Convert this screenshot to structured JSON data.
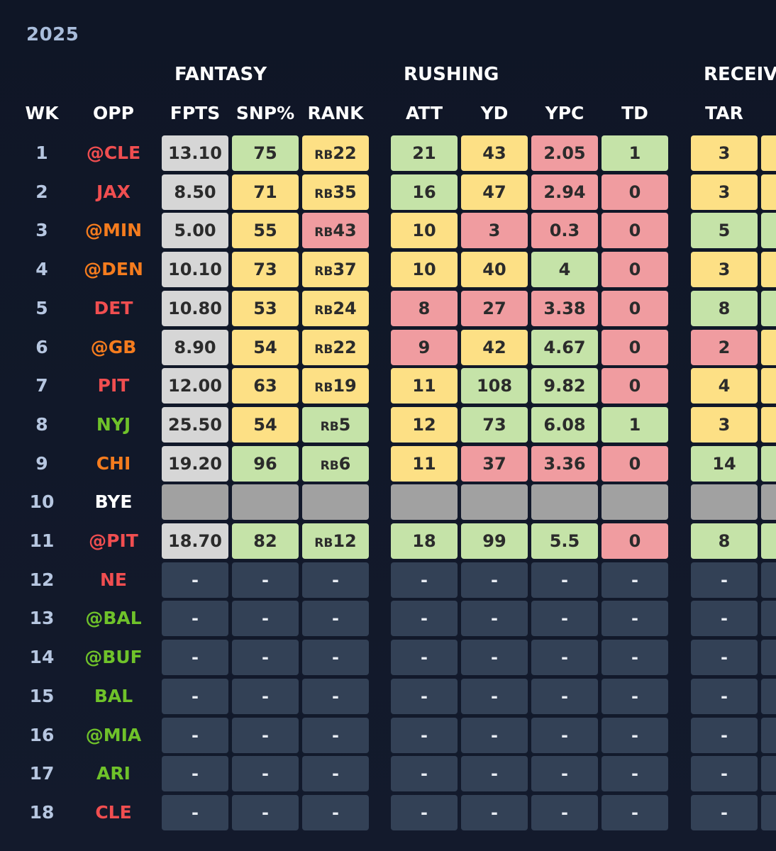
{
  "season": "2025",
  "colors": {
    "green": "#c5e3a8",
    "yellow": "#fde085",
    "red": "#f09ca0",
    "grey": "#d6d6d6",
    "bye": "#a1a1a1",
    "empty": "#334156",
    "team_red": "#f04e50",
    "team_orange": "#f57c1e",
    "team_green": "#6fc22a",
    "team_white": "#ffffff"
  },
  "groups": [
    {
      "label": "FANTASY"
    },
    {
      "label": "RUSHING"
    },
    {
      "label": "RECEIV"
    }
  ],
  "columns": [
    {
      "label": "WK"
    },
    {
      "label": "OPP"
    },
    {
      "label": "FPTS"
    },
    {
      "label": "SNP%"
    },
    {
      "label": "RANK"
    },
    {
      "label": "ATT"
    },
    {
      "label": "YD"
    },
    {
      "label": "YPC"
    },
    {
      "label": "TD"
    },
    {
      "label": "TAR"
    }
  ],
  "rows": [
    {
      "wk": "1",
      "opp": "@CLE",
      "opp_color": "red",
      "cells": [
        {
          "v": "13.10",
          "c": "grey"
        },
        {
          "v": "75",
          "c": "green"
        },
        {
          "pre": "RB",
          "v": "22",
          "c": "yellow"
        },
        {
          "v": "21",
          "c": "green"
        },
        {
          "v": "43",
          "c": "yellow"
        },
        {
          "v": "2.05",
          "c": "red"
        },
        {
          "v": "1",
          "c": "green"
        },
        {
          "v": "3",
          "c": "yellow"
        },
        {
          "v": "",
          "c": "yellow"
        }
      ]
    },
    {
      "wk": "2",
      "opp": "JAX",
      "opp_color": "red",
      "cells": [
        {
          "v": "8.50",
          "c": "grey"
        },
        {
          "v": "71",
          "c": "yellow"
        },
        {
          "pre": "RB",
          "v": "35",
          "c": "yellow"
        },
        {
          "v": "16",
          "c": "green"
        },
        {
          "v": "47",
          "c": "yellow"
        },
        {
          "v": "2.94",
          "c": "red"
        },
        {
          "v": "0",
          "c": "red"
        },
        {
          "v": "3",
          "c": "yellow"
        },
        {
          "v": "",
          "c": "yellow"
        }
      ]
    },
    {
      "wk": "3",
      "opp": "@MIN",
      "opp_color": "orange",
      "cells": [
        {
          "v": "5.00",
          "c": "grey"
        },
        {
          "v": "55",
          "c": "yellow"
        },
        {
          "pre": "RB",
          "v": "43",
          "c": "red"
        },
        {
          "v": "10",
          "c": "yellow"
        },
        {
          "v": "3",
          "c": "red"
        },
        {
          "v": "0.3",
          "c": "red"
        },
        {
          "v": "0",
          "c": "red"
        },
        {
          "v": "5",
          "c": "green"
        },
        {
          "v": "",
          "c": "green"
        }
      ]
    },
    {
      "wk": "4",
      "opp": "@DEN",
      "opp_color": "orange",
      "cells": [
        {
          "v": "10.10",
          "c": "grey"
        },
        {
          "v": "73",
          "c": "yellow"
        },
        {
          "pre": "RB",
          "v": "37",
          "c": "yellow"
        },
        {
          "v": "10",
          "c": "yellow"
        },
        {
          "v": "40",
          "c": "yellow"
        },
        {
          "v": "4",
          "c": "green"
        },
        {
          "v": "0",
          "c": "red"
        },
        {
          "v": "3",
          "c": "yellow"
        },
        {
          "v": "",
          "c": "yellow"
        }
      ]
    },
    {
      "wk": "5",
      "opp": "DET",
      "opp_color": "red",
      "cells": [
        {
          "v": "10.80",
          "c": "grey"
        },
        {
          "v": "53",
          "c": "yellow"
        },
        {
          "pre": "RB",
          "v": "24",
          "c": "yellow"
        },
        {
          "v": "8",
          "c": "red"
        },
        {
          "v": "27",
          "c": "red"
        },
        {
          "v": "3.38",
          "c": "red"
        },
        {
          "v": "0",
          "c": "red"
        },
        {
          "v": "8",
          "c": "green"
        },
        {
          "v": "",
          "c": "green"
        }
      ]
    },
    {
      "wk": "6",
      "opp": "@GB",
      "opp_color": "orange",
      "cells": [
        {
          "v": "8.90",
          "c": "grey"
        },
        {
          "v": "54",
          "c": "yellow"
        },
        {
          "pre": "RB",
          "v": "22",
          "c": "yellow"
        },
        {
          "v": "9",
          "c": "red"
        },
        {
          "v": "42",
          "c": "yellow"
        },
        {
          "v": "4.67",
          "c": "green"
        },
        {
          "v": "0",
          "c": "red"
        },
        {
          "v": "2",
          "c": "red"
        },
        {
          "v": "",
          "c": "yellow"
        }
      ]
    },
    {
      "wk": "7",
      "opp": "PIT",
      "opp_color": "red",
      "cells": [
        {
          "v": "12.00",
          "c": "grey"
        },
        {
          "v": "63",
          "c": "yellow"
        },
        {
          "pre": "RB",
          "v": "19",
          "c": "yellow"
        },
        {
          "v": "11",
          "c": "yellow"
        },
        {
          "v": "108",
          "c": "green"
        },
        {
          "v": "9.82",
          "c": "green"
        },
        {
          "v": "0",
          "c": "red"
        },
        {
          "v": "4",
          "c": "yellow"
        },
        {
          "v": "",
          "c": "yellow"
        }
      ]
    },
    {
      "wk": "8",
      "opp": "NYJ",
      "opp_color": "green",
      "cells": [
        {
          "v": "25.50",
          "c": "grey"
        },
        {
          "v": "54",
          "c": "yellow"
        },
        {
          "pre": "RB",
          "v": "5",
          "c": "green"
        },
        {
          "v": "12",
          "c": "yellow"
        },
        {
          "v": "73",
          "c": "green"
        },
        {
          "v": "6.08",
          "c": "green"
        },
        {
          "v": "1",
          "c": "green"
        },
        {
          "v": "3",
          "c": "yellow"
        },
        {
          "v": "",
          "c": "yellow"
        }
      ]
    },
    {
      "wk": "9",
      "opp": "CHI",
      "opp_color": "orange",
      "cells": [
        {
          "v": "19.20",
          "c": "grey"
        },
        {
          "v": "96",
          "c": "green"
        },
        {
          "pre": "RB",
          "v": "6",
          "c": "green"
        },
        {
          "v": "11",
          "c": "yellow"
        },
        {
          "v": "37",
          "c": "red"
        },
        {
          "v": "3.36",
          "c": "red"
        },
        {
          "v": "0",
          "c": "red"
        },
        {
          "v": "14",
          "c": "green"
        },
        {
          "v": "",
          "c": "green"
        }
      ]
    },
    {
      "wk": "10",
      "opp": "BYE",
      "opp_color": "white",
      "cells": [
        {
          "v": "",
          "c": "bye"
        },
        {
          "v": "",
          "c": "bye"
        },
        {
          "v": "",
          "c": "bye"
        },
        {
          "v": "",
          "c": "bye"
        },
        {
          "v": "",
          "c": "bye"
        },
        {
          "v": "",
          "c": "bye"
        },
        {
          "v": "",
          "c": "bye"
        },
        {
          "v": "",
          "c": "bye"
        },
        {
          "v": "",
          "c": "bye"
        }
      ]
    },
    {
      "wk": "11",
      "opp": "@PIT",
      "opp_color": "red",
      "cells": [
        {
          "v": "18.70",
          "c": "grey"
        },
        {
          "v": "82",
          "c": "green"
        },
        {
          "pre": "RB",
          "v": "12",
          "c": "green"
        },
        {
          "v": "18",
          "c": "green"
        },
        {
          "v": "99",
          "c": "green"
        },
        {
          "v": "5.5",
          "c": "green"
        },
        {
          "v": "0",
          "c": "red"
        },
        {
          "v": "8",
          "c": "green"
        },
        {
          "v": "",
          "c": "green"
        }
      ]
    },
    {
      "wk": "12",
      "opp": "NE",
      "opp_color": "red",
      "empty": true
    },
    {
      "wk": "13",
      "opp": "@BAL",
      "opp_color": "green",
      "empty": true
    },
    {
      "wk": "14",
      "opp": "@BUF",
      "opp_color": "green",
      "empty": true
    },
    {
      "wk": "15",
      "opp": "BAL",
      "opp_color": "green",
      "empty": true
    },
    {
      "wk": "16",
      "opp": "@MIA",
      "opp_color": "green",
      "empty": true
    },
    {
      "wk": "17",
      "opp": "ARI",
      "opp_color": "green",
      "empty": true
    },
    {
      "wk": "18",
      "opp": "CLE",
      "opp_color": "red",
      "empty": true
    }
  ],
  "empty_cell_text": "-"
}
